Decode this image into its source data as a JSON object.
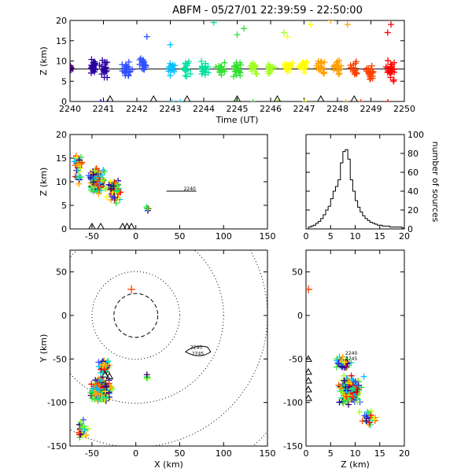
{
  "chart_data": [
    {
      "id": "time-height",
      "type": "scatter",
      "title": "ABFM - 05/27/01 22:39:59 - 22:50:00",
      "xlabel": "Time (UT)",
      "ylabel": "Z (km)",
      "xlim": [
        2240,
        2250
      ],
      "ylim": [
        0,
        20
      ],
      "xticks": [
        "2240",
        "2241",
        "2242",
        "2243",
        "2244",
        "2245",
        "2246",
        "2247",
        "2248",
        "2249",
        "2250"
      ],
      "yticks": [
        "0",
        "5",
        "10",
        "15",
        "20"
      ],
      "reference_line_y": 8,
      "marker": "+",
      "colormap": [
        "#3a0060",
        "#2a00a0",
        "#3050ff",
        "#00c0ff",
        "#00e0a0",
        "#30e030",
        "#a0ff20",
        "#ffff00",
        "#ffa000",
        "#ff4000",
        "#ff0000"
      ],
      "station_markers_x": [
        2241.2,
        2242.5,
        2243.5,
        2245.0,
        2246.2,
        2247.5,
        2248.5
      ],
      "clusters": [
        {
          "x": 2240.0,
          "y": 8.0,
          "yspread": 1.5,
          "n": 14
        },
        {
          "x": 2240.7,
          "y": 8.5,
          "yspread": 2.5,
          "n": 22
        },
        {
          "x": 2241.0,
          "y": 8.0,
          "yspread": 3.0,
          "n": 20
        },
        {
          "x": 2241.7,
          "y": 8.0,
          "yspread": 2.5,
          "n": 24
        },
        {
          "x": 2242.2,
          "y": 9.0,
          "yspread": 2.0,
          "n": 20
        },
        {
          "x": 2243.0,
          "y": 8.0,
          "yspread": 2.0,
          "n": 16
        },
        {
          "x": 2243.5,
          "y": 8.5,
          "yspread": 2.5,
          "n": 16
        },
        {
          "x": 2244.0,
          "y": 8.5,
          "yspread": 2.5,
          "n": 18
        },
        {
          "x": 2244.5,
          "y": 8.0,
          "yspread": 2.5,
          "n": 16
        },
        {
          "x": 2245.0,
          "y": 8.0,
          "yspread": 3.0,
          "n": 24
        },
        {
          "x": 2245.5,
          "y": 8.5,
          "yspread": 2.0,
          "n": 18
        },
        {
          "x": 2246.0,
          "y": 8.0,
          "yspread": 2.0,
          "n": 16
        },
        {
          "x": 2246.5,
          "y": 8.5,
          "yspread": 2.0,
          "n": 18
        },
        {
          "x": 2247.0,
          "y": 9.0,
          "yspread": 2.5,
          "n": 20
        },
        {
          "x": 2247.5,
          "y": 8.5,
          "yspread": 3.0,
          "n": 22
        },
        {
          "x": 2248.0,
          "y": 8.5,
          "yspread": 2.5,
          "n": 20
        },
        {
          "x": 2248.5,
          "y": 8.0,
          "yspread": 2.5,
          "n": 16
        },
        {
          "x": 2249.0,
          "y": 7.0,
          "yspread": 2.5,
          "n": 20
        },
        {
          "x": 2249.6,
          "y": 7.5,
          "yspread": 3.0,
          "n": 24
        }
      ],
      "outliers": [
        {
          "x": 2244.3,
          "y": 19.5
        },
        {
          "x": 2245.2,
          "y": 18.0
        },
        {
          "x": 2246.4,
          "y": 17.0
        },
        {
          "x": 2247.2,
          "y": 19.0
        },
        {
          "x": 2247.8,
          "y": 20.0
        },
        {
          "x": 2248.3,
          "y": 19.0
        },
        {
          "x": 2249.6,
          "y": 19.0
        },
        {
          "x": 2249.5,
          "y": 17.0
        },
        {
          "x": 2242.3,
          "y": 16.0
        },
        {
          "x": 2245.0,
          "y": 16.5
        },
        {
          "x": 2246.5,
          "y": 16.0
        },
        {
          "x": 2243.0,
          "y": 14.0
        }
      ]
    },
    {
      "id": "x-height",
      "type": "scatter",
      "title": "",
      "xlabel": "",
      "ylabel": "Z (km)",
      "xlim": [
        -75,
        150
      ],
      "ylim": [
        0,
        20
      ],
      "xticks": [
        "-50",
        "0",
        "50",
        "100",
        "150"
      ],
      "yticks": [
        "0",
        "5",
        "10",
        "15",
        "20"
      ],
      "marker": "+",
      "clusters": [
        {
          "x": -45,
          "y": 10.0,
          "xspread": 12,
          "yspread": 3.5,
          "n": 140
        },
        {
          "x": -25,
          "y": 8.0,
          "xspread": 10,
          "yspread": 3.0,
          "n": 60
        },
        {
          "x": -65,
          "y": 13.0,
          "xspread": 8,
          "yspread": 5.0,
          "n": 30
        },
        {
          "x": 14,
          "y": 4.5,
          "xspread": 3,
          "yspread": 1.0,
          "n": 5
        }
      ],
      "station_markers_x": [
        -50,
        -40,
        -15,
        -10,
        -5
      ],
      "track_label": {
        "x": 60,
        "y": 8,
        "text": "2240"
      }
    },
    {
      "id": "height-histogram",
      "type": "bar",
      "title": "",
      "xlabel": "",
      "ylabel": "number of sources",
      "xlim": [
        0,
        20
      ],
      "ylim": [
        0,
        100
      ],
      "xticks": [
        "0",
        "5",
        "10",
        "15",
        "20"
      ],
      "yticks": [
        "0",
        "20",
        "40",
        "60",
        "80",
        "100"
      ],
      "bin_width": 0.5,
      "bin_starts": [
        0.5,
        1.0,
        1.5,
        2.0,
        2.5,
        3.0,
        3.5,
        4.0,
        4.5,
        5.0,
        5.5,
        6.0,
        6.5,
        7.0,
        7.5,
        8.0,
        8.5,
        9.0,
        9.5,
        10.0,
        10.5,
        11.0,
        11.5,
        12.0,
        12.5,
        13.0,
        13.5,
        14.0,
        14.5,
        15.0,
        15.5,
        16.0,
        16.5,
        17.0,
        17.5,
        18.0,
        18.5,
        19.0,
        19.5
      ],
      "values": [
        2,
        3,
        4,
        6,
        8,
        11,
        15,
        20,
        24,
        32,
        40,
        45,
        52,
        70,
        82,
        84,
        74,
        52,
        40,
        30,
        23,
        18,
        14,
        11,
        9,
        7,
        6,
        5,
        4,
        4,
        3,
        3,
        3,
        2,
        2,
        2,
        2,
        2,
        1
      ]
    },
    {
      "id": "plan-view",
      "type": "scatter",
      "title": "",
      "xlabel": "X (km)",
      "ylabel": "Y (km)",
      "xlim": [
        -75,
        150
      ],
      "ylim": [
        -150,
        75
      ],
      "xticks": [
        "-50",
        "0",
        "50",
        "100",
        "150"
      ],
      "yticks": [
        "-150",
        "-100",
        "-50",
        "0",
        "50"
      ],
      "marker": "+",
      "range_rings_km": [
        25,
        50,
        100,
        150,
        200
      ],
      "range_ring_center": [
        0,
        0
      ],
      "clusters": [
        {
          "x": -40,
          "y": -85,
          "xspread": 15,
          "yspread": 18,
          "n": 190
        },
        {
          "x": -35,
          "y": -60,
          "xspread": 10,
          "yspread": 10,
          "n": 40
        },
        {
          "x": -60,
          "y": -130,
          "xspread": 10,
          "yspread": 15,
          "n": 25
        },
        {
          "x": 12,
          "y": -70,
          "xspread": 3,
          "yspread": 4,
          "n": 5
        }
      ],
      "highlight_points": [
        {
          "x": -5,
          "y": 30
        }
      ],
      "station_markers": [
        {
          "x": -35,
          "y": -68
        },
        {
          "x": -30,
          "y": -70
        }
      ],
      "track_label_top": "2240",
      "track_label_bottom": "2745",
      "track_label_x": 62,
      "track_label_y": -40
    },
    {
      "id": "z-y",
      "type": "scatter",
      "title": "",
      "xlabel": "Z (km)",
      "ylabel": "",
      "xlim": [
        0,
        20
      ],
      "ylim": [
        -150,
        75
      ],
      "xticks": [
        "0",
        "5",
        "10",
        "15",
        "20"
      ],
      "yticks": [
        "-150",
        "-100",
        "-50",
        "0",
        "50"
      ],
      "marker": "+",
      "clusters": [
        {
          "x": 9.0,
          "y": -85,
          "xspread": 3.0,
          "yspread": 20,
          "n": 180
        },
        {
          "x": 7.5,
          "y": -55,
          "xspread": 2.0,
          "yspread": 10,
          "n": 40
        },
        {
          "x": 13.0,
          "y": -120,
          "xspread": 3.0,
          "yspread": 15,
          "n": 25
        }
      ],
      "highlight_points": [
        {
          "x": 0.5,
          "y": 30
        }
      ],
      "station_markers_y": [
        -50,
        -65,
        -75,
        -85,
        -95
      ],
      "track_label_top": "2240",
      "track_label_bottom": "2745",
      "track_label_x": 8,
      "track_label_y": -45
    }
  ]
}
